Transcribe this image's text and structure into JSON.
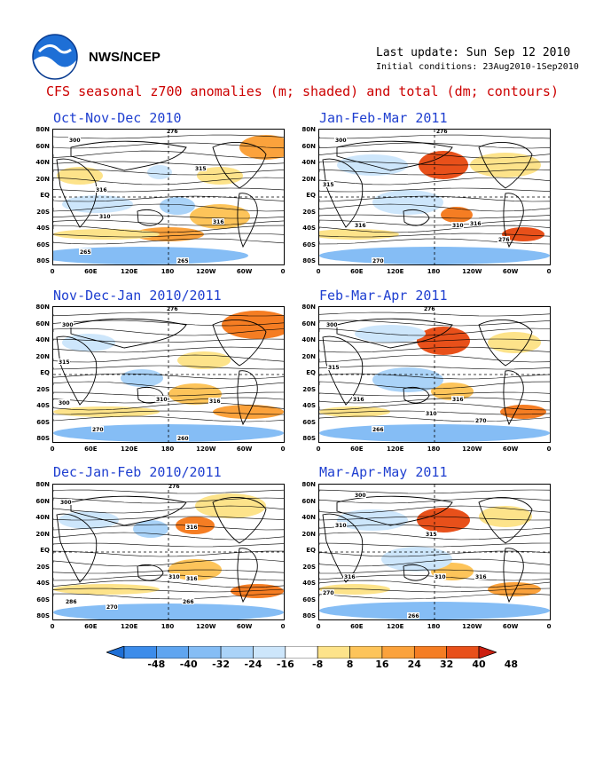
{
  "header": {
    "org": "NWS/NCEP",
    "last_update": "Last update: Sun Sep 12 2010",
    "initial_conditions": "Initial conditions: 23Aug2010-1Sep2010",
    "title": "CFS seasonal z700 anomalies (m; shaded) and total (dm; contours)"
  },
  "panels": [
    {
      "title": "Oct-Nov-Dec 2010"
    },
    {
      "title": "Jan-Feb-Mar 2011"
    },
    {
      "title": "Nov-Dec-Jan 2010/2011"
    },
    {
      "title": "Feb-Mar-Apr 2011"
    },
    {
      "title": "Dec-Jan-Feb 2010/2011"
    },
    {
      "title": "Mar-Apr-May 2011"
    }
  ],
  "lat_labels": [
    "80N",
    "60N",
    "40N",
    "20N",
    "EQ",
    "20S",
    "40S",
    "60S",
    "80S"
  ],
  "lon_labels": [
    "0",
    "60E",
    "120E",
    "180",
    "120W",
    "60W",
    "0"
  ],
  "colorbar": {
    "labels": [
      "-48",
      "-40",
      "-32",
      "-24",
      "-16",
      "-8",
      "8",
      "16",
      "24",
      "32",
      "40",
      "48"
    ],
    "colors": [
      "#1e6fd6",
      "#3c8cea",
      "#5fa5f0",
      "#85bdf5",
      "#aad3f8",
      "#cde6fb",
      "#ffffff",
      "#fde38a",
      "#fdc45a",
      "#fba23c",
      "#f57d23",
      "#e8501a",
      "#cc1f10"
    ]
  }
}
